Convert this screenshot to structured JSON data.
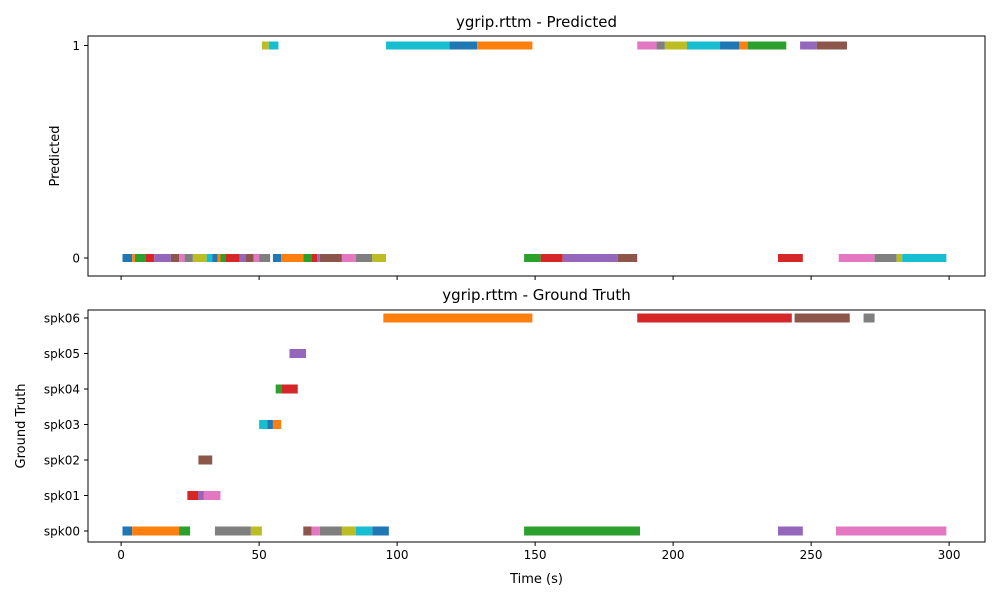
{
  "chart_data": [
    {
      "type": "timeline",
      "title": "ygrip.rttm - Predicted",
      "ylabel": "Predicted",
      "xlabel": "",
      "rows": [
        "0",
        "1"
      ],
      "xlim": [
        -12,
        313
      ],
      "xticks": [
        0,
        50,
        100,
        150,
        200,
        250,
        300
      ],
      "show_xtick_labels": false,
      "segments": [
        {
          "row": "0",
          "start": 0.5,
          "end": 4,
          "color": "#1f77b4"
        },
        {
          "row": "0",
          "start": 4,
          "end": 5,
          "color": "#ff7f0e"
        },
        {
          "row": "0",
          "start": 5,
          "end": 9,
          "color": "#2ca02c"
        },
        {
          "row": "0",
          "start": 9,
          "end": 12,
          "color": "#d62728"
        },
        {
          "row": "0",
          "start": 12,
          "end": 18,
          "color": "#9467bd"
        },
        {
          "row": "0",
          "start": 18,
          "end": 21,
          "color": "#8c564b"
        },
        {
          "row": "0",
          "start": 21,
          "end": 23,
          "color": "#e377c2"
        },
        {
          "row": "0",
          "start": 23,
          "end": 26,
          "color": "#7f7f7f"
        },
        {
          "row": "0",
          "start": 26,
          "end": 31,
          "color": "#bcbd22"
        },
        {
          "row": "0",
          "start": 31,
          "end": 33,
          "color": "#17becf"
        },
        {
          "row": "0",
          "start": 33,
          "end": 35,
          "color": "#1f77b4"
        },
        {
          "row": "0",
          "start": 35,
          "end": 36,
          "color": "#ff7f0e"
        },
        {
          "row": "0",
          "start": 36,
          "end": 38,
          "color": "#2ca02c"
        },
        {
          "row": "0",
          "start": 38,
          "end": 43,
          "color": "#d62728"
        },
        {
          "row": "0",
          "start": 43,
          "end": 45,
          "color": "#9467bd"
        },
        {
          "row": "0",
          "start": 45,
          "end": 48,
          "color": "#8c564b"
        },
        {
          "row": "0",
          "start": 48,
          "end": 50,
          "color": "#e377c2"
        },
        {
          "row": "0",
          "start": 50,
          "end": 54,
          "color": "#7f7f7f"
        },
        {
          "row": "0",
          "start": 55,
          "end": 58,
          "color": "#1f77b4"
        },
        {
          "row": "0",
          "start": 58,
          "end": 66,
          "color": "#ff7f0e"
        },
        {
          "row": "0",
          "start": 66,
          "end": 69,
          "color": "#2ca02c"
        },
        {
          "row": "0",
          "start": 69,
          "end": 71,
          "color": "#d62728"
        },
        {
          "row": "0",
          "start": 71,
          "end": 72,
          "color": "#9467bd"
        },
        {
          "row": "0",
          "start": 72,
          "end": 80,
          "color": "#8c564b"
        },
        {
          "row": "0",
          "start": 80,
          "end": 85,
          "color": "#e377c2"
        },
        {
          "row": "0",
          "start": 85,
          "end": 91,
          "color": "#7f7f7f"
        },
        {
          "row": "0",
          "start": 91,
          "end": 96,
          "color": "#bcbd22"
        },
        {
          "row": "0",
          "start": 146,
          "end": 152,
          "color": "#2ca02c"
        },
        {
          "row": "0",
          "start": 152,
          "end": 160,
          "color": "#d62728"
        },
        {
          "row": "0",
          "start": 160,
          "end": 180,
          "color": "#9467bd"
        },
        {
          "row": "0",
          "start": 180,
          "end": 187,
          "color": "#8c564b"
        },
        {
          "row": "0",
          "start": 238,
          "end": 247,
          "color": "#d62728"
        },
        {
          "row": "0",
          "start": 260,
          "end": 273,
          "color": "#e377c2"
        },
        {
          "row": "0",
          "start": 273,
          "end": 281,
          "color": "#7f7f7f"
        },
        {
          "row": "0",
          "start": 281,
          "end": 283,
          "color": "#bcbd22"
        },
        {
          "row": "0",
          "start": 283,
          "end": 299,
          "color": "#17becf"
        },
        {
          "row": "1",
          "start": 51,
          "end": 53.5,
          "color": "#bcbd22"
        },
        {
          "row": "1",
          "start": 53.5,
          "end": 57,
          "color": "#17becf"
        },
        {
          "row": "1",
          "start": 96,
          "end": 119,
          "color": "#17becf"
        },
        {
          "row": "1",
          "start": 119,
          "end": 129,
          "color": "#1f77b4"
        },
        {
          "row": "1",
          "start": 129,
          "end": 149,
          "color": "#ff7f0e"
        },
        {
          "row": "1",
          "start": 187,
          "end": 194,
          "color": "#e377c2"
        },
        {
          "row": "1",
          "start": 194,
          "end": 197,
          "color": "#7f7f7f"
        },
        {
          "row": "1",
          "start": 197,
          "end": 205,
          "color": "#bcbd22"
        },
        {
          "row": "1",
          "start": 205,
          "end": 217,
          "color": "#17becf"
        },
        {
          "row": "1",
          "start": 217,
          "end": 224,
          "color": "#1f77b4"
        },
        {
          "row": "1",
          "start": 224,
          "end": 227,
          "color": "#ff7f0e"
        },
        {
          "row": "1",
          "start": 227,
          "end": 241,
          "color": "#2ca02c"
        },
        {
          "row": "1",
          "start": 246,
          "end": 252,
          "color": "#9467bd"
        },
        {
          "row": "1",
          "start": 252,
          "end": 263,
          "color": "#8c564b"
        }
      ]
    },
    {
      "type": "timeline",
      "title": "ygrip.rttm - Ground Truth",
      "ylabel": "Ground Truth",
      "xlabel": "Time (s)",
      "rows": [
        "spk00",
        "spk01",
        "spk02",
        "spk03",
        "spk04",
        "spk05",
        "spk06"
      ],
      "xlim": [
        -12,
        313
      ],
      "xticks": [
        0,
        50,
        100,
        150,
        200,
        250,
        300
      ],
      "show_xtick_labels": true,
      "segments": [
        {
          "row": "spk00",
          "start": 0.5,
          "end": 4,
          "color": "#1f77b4"
        },
        {
          "row": "spk00",
          "start": 4,
          "end": 21,
          "color": "#ff7f0e"
        },
        {
          "row": "spk00",
          "start": 21,
          "end": 25,
          "color": "#2ca02c"
        },
        {
          "row": "spk00",
          "start": 34,
          "end": 47,
          "color": "#7f7f7f"
        },
        {
          "row": "spk00",
          "start": 47,
          "end": 51,
          "color": "#bcbd22"
        },
        {
          "row": "spk00",
          "start": 66,
          "end": 69,
          "color": "#8c564b"
        },
        {
          "row": "spk00",
          "start": 69,
          "end": 72,
          "color": "#e377c2"
        },
        {
          "row": "spk00",
          "start": 72,
          "end": 80,
          "color": "#7f7f7f"
        },
        {
          "row": "spk00",
          "start": 80,
          "end": 85,
          "color": "#bcbd22"
        },
        {
          "row": "spk00",
          "start": 85,
          "end": 91,
          "color": "#17becf"
        },
        {
          "row": "spk00",
          "start": 91,
          "end": 97,
          "color": "#1f77b4"
        },
        {
          "row": "spk00",
          "start": 146,
          "end": 188,
          "color": "#2ca02c"
        },
        {
          "row": "spk00",
          "start": 238,
          "end": 247,
          "color": "#9467bd"
        },
        {
          "row": "spk00",
          "start": 259,
          "end": 299,
          "color": "#e377c2"
        },
        {
          "row": "spk01",
          "start": 24,
          "end": 28,
          "color": "#d62728"
        },
        {
          "row": "spk01",
          "start": 28,
          "end": 30,
          "color": "#9467bd"
        },
        {
          "row": "spk01",
          "start": 30,
          "end": 36,
          "color": "#e377c2"
        },
        {
          "row": "spk02",
          "start": 28,
          "end": 33,
          "color": "#8c564b"
        },
        {
          "row": "spk03",
          "start": 50,
          "end": 53,
          "color": "#17becf"
        },
        {
          "row": "spk03",
          "start": 53,
          "end": 55,
          "color": "#1f77b4"
        },
        {
          "row": "spk03",
          "start": 55,
          "end": 58,
          "color": "#ff7f0e"
        },
        {
          "row": "spk04",
          "start": 56,
          "end": 58,
          "color": "#2ca02c"
        },
        {
          "row": "spk04",
          "start": 58,
          "end": 64,
          "color": "#d62728"
        },
        {
          "row": "spk05",
          "start": 61,
          "end": 67,
          "color": "#9467bd"
        },
        {
          "row": "spk06",
          "start": 95,
          "end": 149,
          "color": "#ff7f0e"
        },
        {
          "row": "spk06",
          "start": 187,
          "end": 243,
          "color": "#d62728"
        },
        {
          "row": "spk06",
          "start": 244,
          "end": 264,
          "color": "#8c564b"
        },
        {
          "row": "spk06",
          "start": 269,
          "end": 273,
          "color": "#7f7f7f"
        }
      ]
    }
  ]
}
